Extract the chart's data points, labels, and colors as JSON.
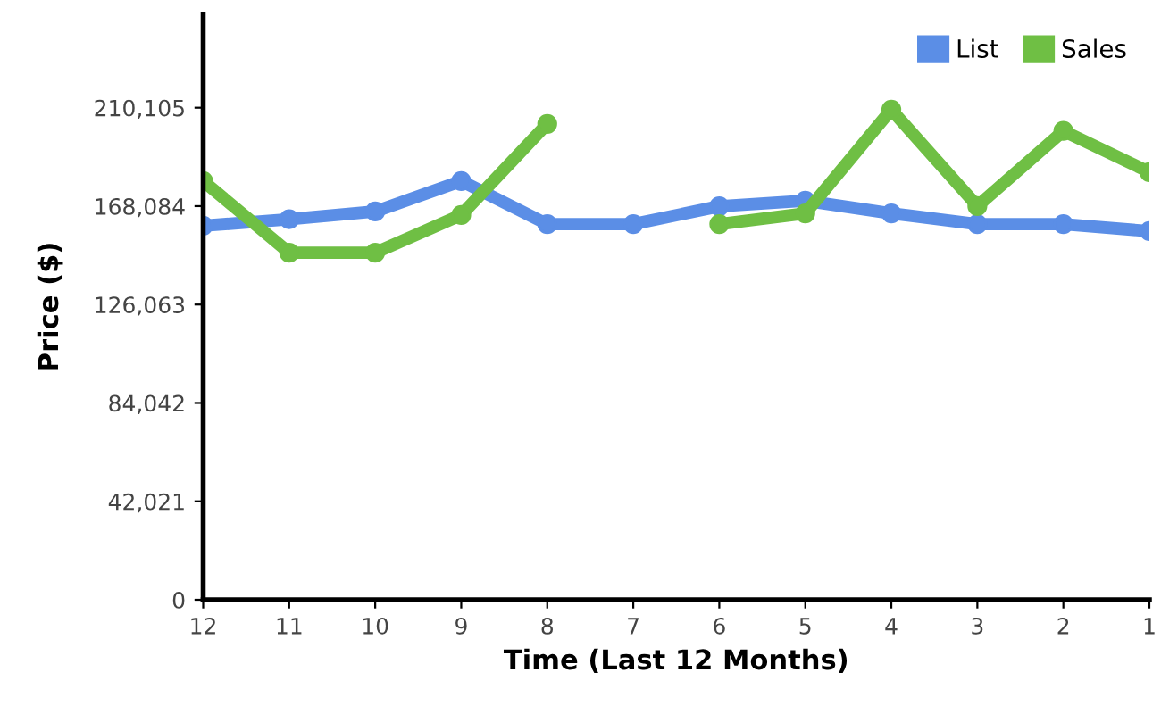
{
  "chart_data": {
    "type": "line",
    "xlabel": "Time (Last 12 Months)",
    "ylabel": "Price ($)",
    "categories": [
      "12",
      "11",
      "10",
      "9",
      "8",
      "7",
      "6",
      "5",
      "4",
      "3",
      "2",
      "1"
    ],
    "series": [
      {
        "name": "List",
        "color": "#5b8ee6",
        "values": [
          159700,
          162500,
          165800,
          178800,
          160400,
          160400,
          168000,
          170400,
          165000,
          160400,
          160400,
          157400
        ]
      },
      {
        "name": "Sales",
        "color": "#6fbf44",
        "values": [
          178800,
          148200,
          148200,
          164300,
          203200,
          null,
          160400,
          165000,
          209300,
          168100,
          200200,
          182600
        ]
      }
    ],
    "ylim": [
      0,
      250000
    ],
    "yticks": [
      0,
      {
        "value": 42021,
        "label": "42,021"
      },
      {
        "value": 84042,
        "label": "84,042"
      },
      {
        "value": 126063,
        "label": "126,063"
      },
      {
        "value": 168084,
        "label": "168,084"
      },
      {
        "value": 210105,
        "label": "210,105"
      }
    ],
    "grid": false,
    "legend": "top right",
    "marker": "circle",
    "line_style": "solid"
  }
}
